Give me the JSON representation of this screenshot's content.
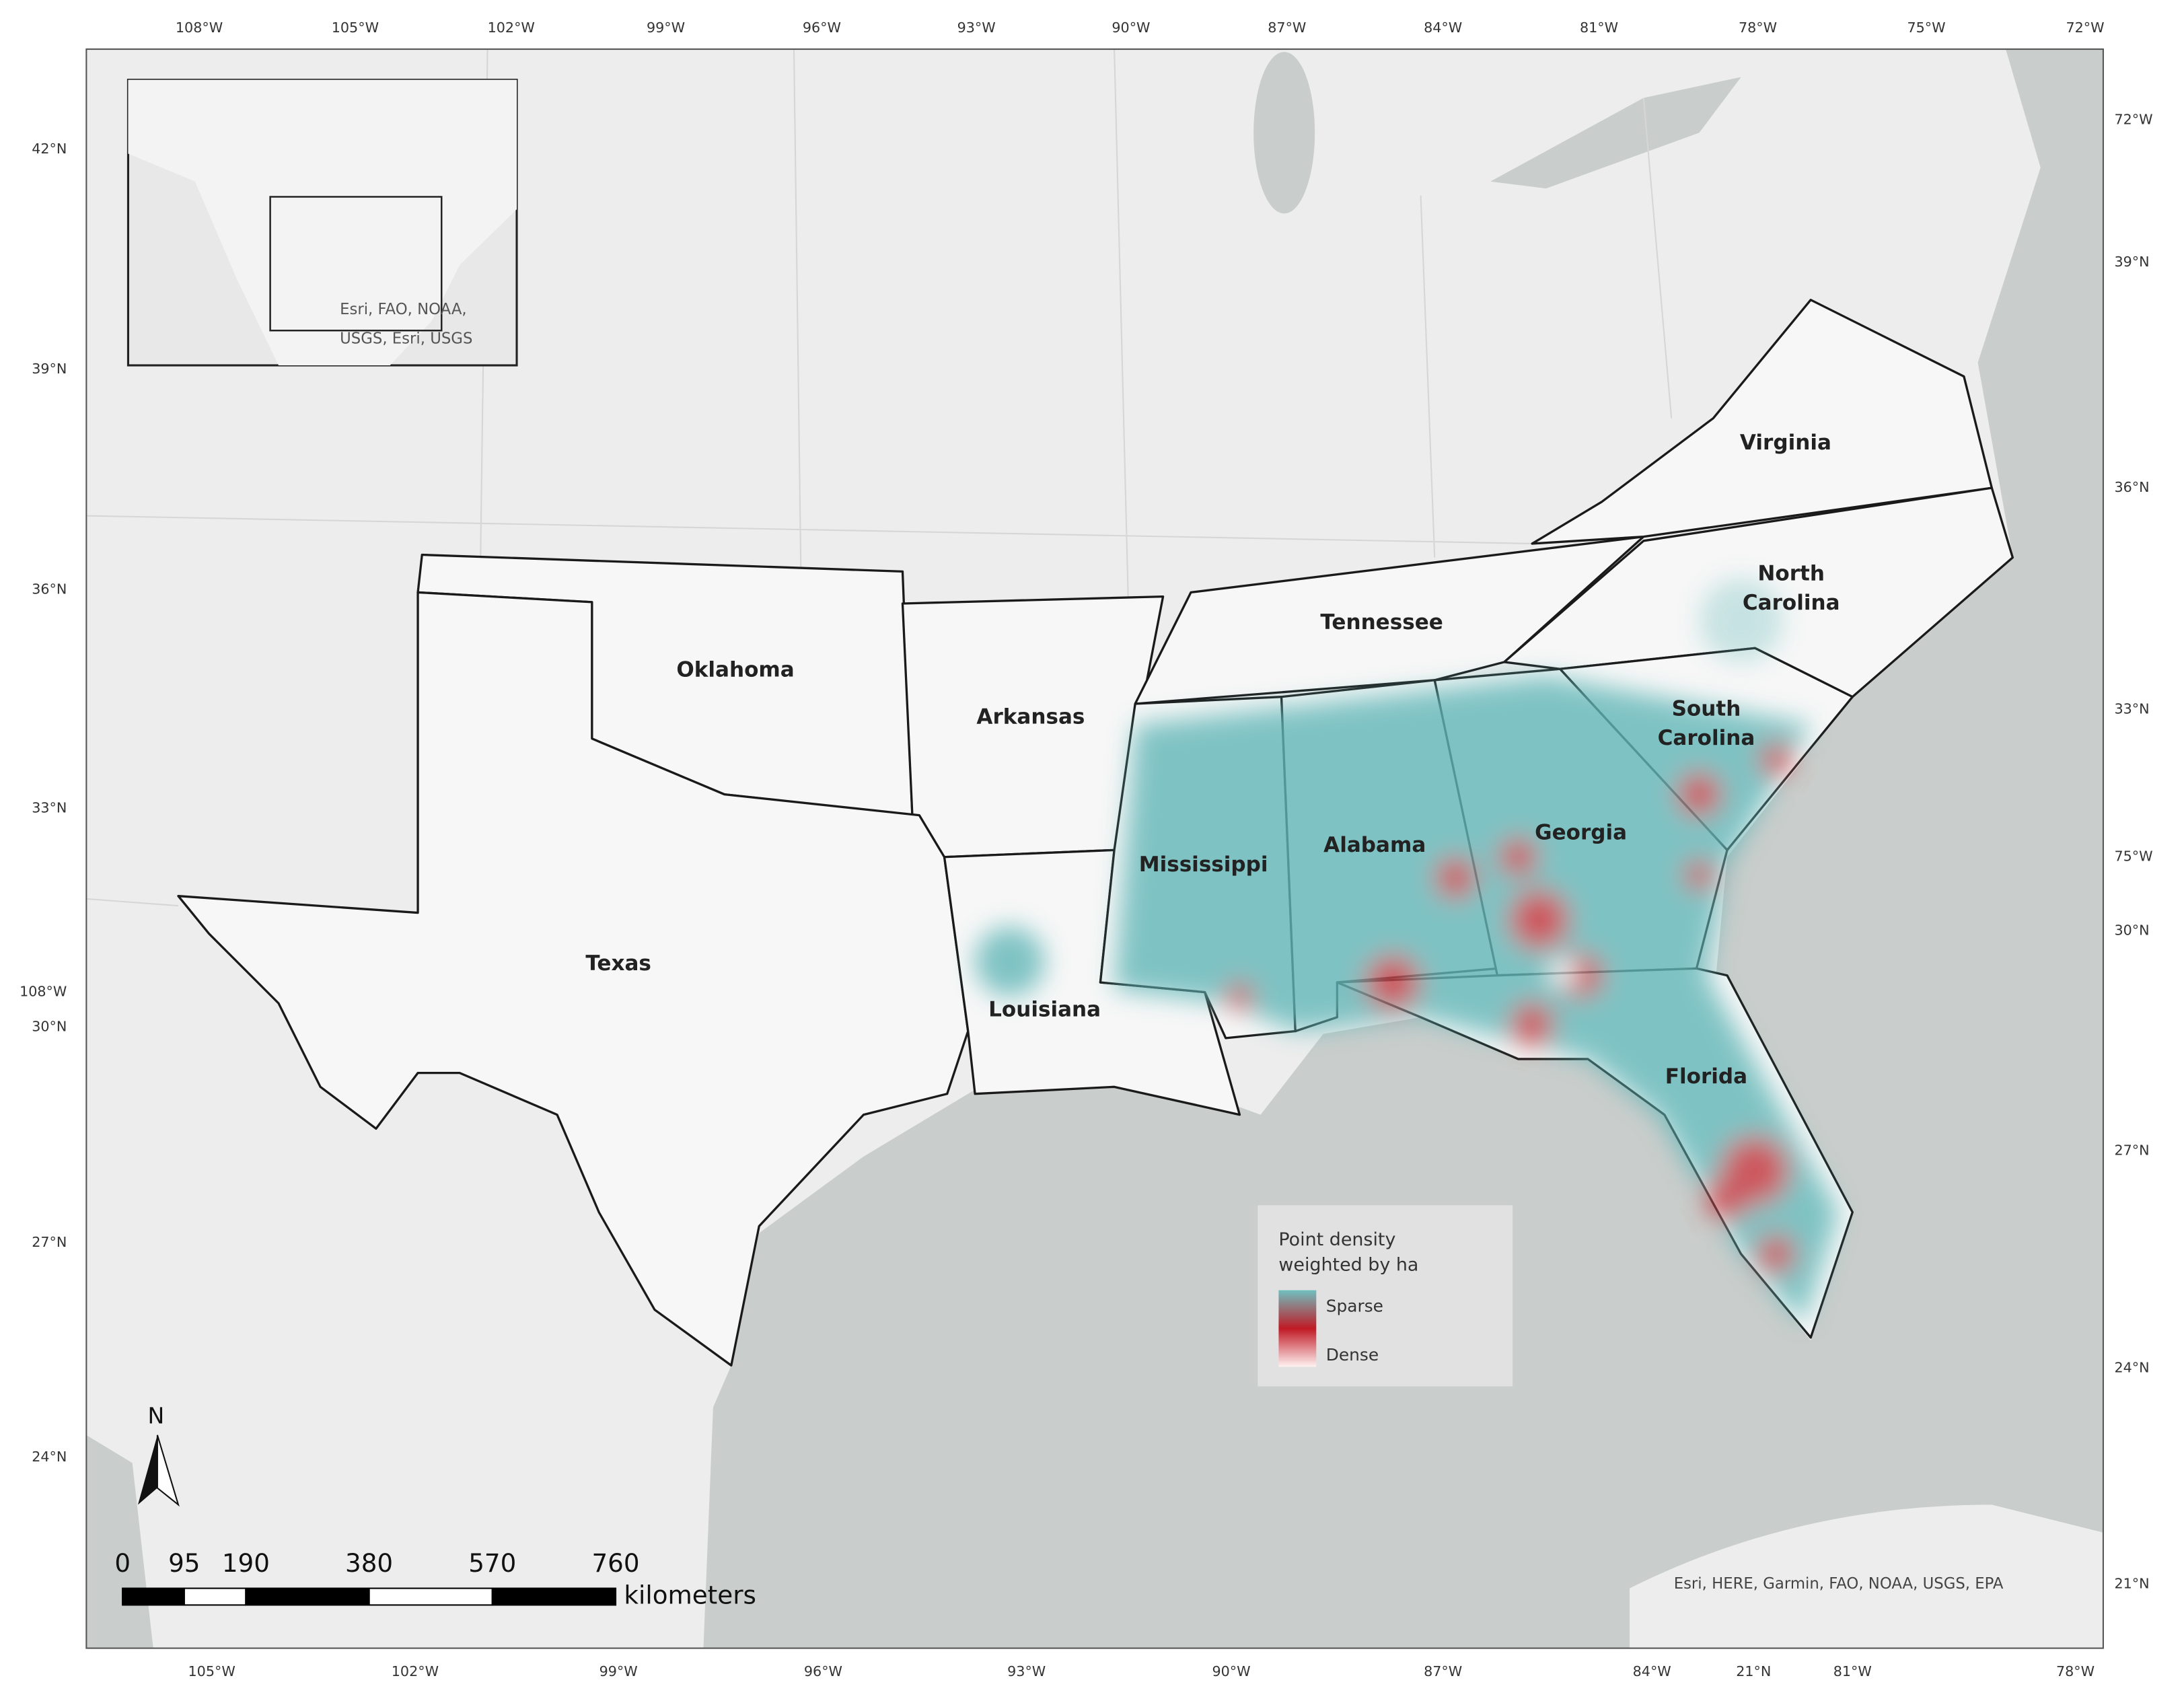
{
  "graticule": {
    "top": [
      "108°W",
      "105°W",
      "102°W",
      "99°W",
      "96°W",
      "93°W",
      "90°W",
      "87°W",
      "84°W",
      "81°W",
      "78°W",
      "75°W",
      "72°W"
    ],
    "bottom": [
      "105°W",
      "102°W",
      "99°W",
      "96°W",
      "93°W",
      "90°W",
      "87°W",
      "84°W",
      "21°N",
      "81°W",
      "78°W"
    ],
    "left": [
      "42°N",
      "39°N",
      "36°N",
      "33°N",
      "108°W",
      "30°N",
      "27°N",
      "24°N"
    ],
    "right": [
      "72°W",
      "39°N",
      "36°N",
      "33°N",
      "75°W",
      "30°N",
      "27°N",
      "24°N",
      "21°N"
    ]
  },
  "inset": {
    "attribution": [
      "Esri, FAO, NOAA,",
      "USGS, Esri, USGS"
    ]
  },
  "states": [
    {
      "lines": [
        "Oklahoma"
      ]
    },
    {
      "lines": [
        "Arkansas"
      ]
    },
    {
      "lines": [
        "Tennessee"
      ]
    },
    {
      "lines": [
        "Virginia"
      ]
    },
    {
      "lines": [
        "North",
        "Carolina"
      ]
    },
    {
      "lines": [
        "South",
        "Carolina"
      ]
    },
    {
      "lines": [
        "Mississippi"
      ]
    },
    {
      "lines": [
        "Alabama"
      ]
    },
    {
      "lines": [
        "Georgia"
      ]
    },
    {
      "lines": [
        "Texas"
      ]
    },
    {
      "lines": [
        "Louisiana"
      ]
    },
    {
      "lines": [
        "Florida"
      ]
    }
  ],
  "legend": {
    "title": [
      "Point density",
      "weighted by ha"
    ],
    "sparse": "Sparse",
    "dense": "Dense"
  },
  "scale_bar": {
    "ticks": [
      0,
      95,
      190,
      380,
      570,
      760
    ],
    "unit": "kilometers"
  },
  "north_arrow": "N",
  "attribution": "Esri, HERE, Garmin, FAO, NOAA, USGS, EPA"
}
